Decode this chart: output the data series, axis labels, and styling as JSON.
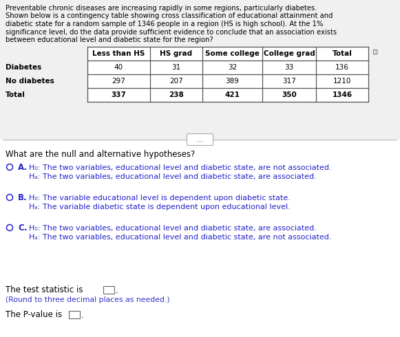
{
  "bg_color_top": "#f0f0f0",
  "bg_color_bottom": "#ffffff",
  "intro_text_lines": [
    "Preventable chronic diseases are increasing rapidly in some regions, particularly diabetes.",
    "Shown below is a contingency table showing cross classification of educational attainment and",
    "diabetic state for a random sample of 1346 people in a region (HS is high school). At the 1%",
    "significance level, do the data provide sufficient evidence to conclude that an association exists",
    "between educational level and diabetic state for the region?"
  ],
  "table_headers": [
    "",
    "Less than HS",
    "HS grad",
    "Some college",
    "College grad",
    "Total"
  ],
  "table_rows": [
    [
      "Diabetes",
      "40",
      "31",
      "32",
      "33",
      "136"
    ],
    [
      "No diabetes",
      "297",
      "207",
      "389",
      "317",
      "1210"
    ],
    [
      "Total",
      "337",
      "238",
      "421",
      "350",
      "1346"
    ]
  ],
  "question": "What are the null and alternative hypotheses?",
  "options": [
    {
      "label": "A.",
      "h0": "H₀: The two variables, educational level and diabetic state, are not associated.",
      "ha": "Hₐ: The two variables, educational level and diabetic state, are associated."
    },
    {
      "label": "B.",
      "h0": "H₀: The variable educational level is dependent upon diabetic state.",
      "ha": "Hₐ: The variable diabetic state is dependent upon educational level."
    },
    {
      "label": "C.",
      "h0": "H₀: The two variables, educational level and diabetic state, are associated.",
      "ha": "Hₐ: The two variables, educational level and diabetic state, are not associated."
    }
  ],
  "test_stat_text": "The test statistic is",
  "round_note": "(Round to three decimal places as needed.)",
  "pvalue_text": "The P-value is",
  "text_color": "#000000",
  "blue_color": "#3333cc",
  "option_color": "#2222cc",
  "table_border_color": "#555555",
  "separator_color": "#bbbbbb"
}
